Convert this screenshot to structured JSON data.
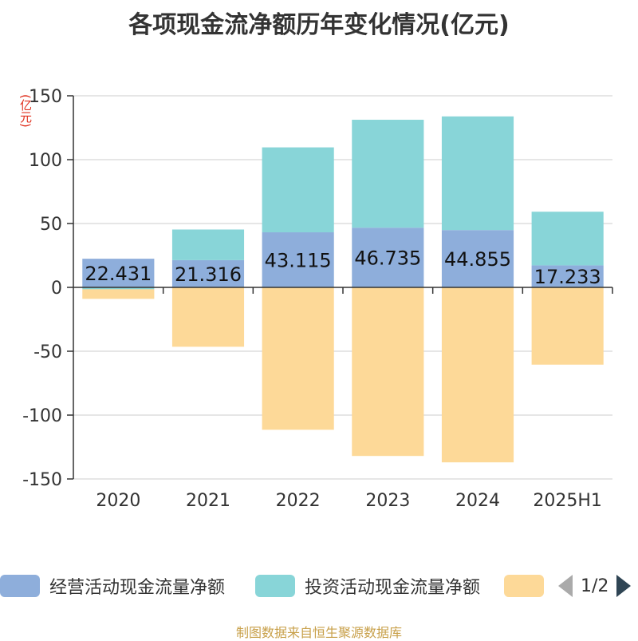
{
  "chart_data": {
    "type": "bar",
    "stacked": true,
    "title": "各项现金流净额历年变化情况(亿元)",
    "ylabel": "(亿元)",
    "categories": [
      "2020",
      "2021",
      "2022",
      "2023",
      "2024",
      "2025H1"
    ],
    "ylim": [
      -150,
      150
    ],
    "yticks": [
      150,
      100,
      50,
      0,
      -50,
      -100,
      -150
    ],
    "grid": true,
    "legend_position": "bottom",
    "series": [
      {
        "name": "经营活动现金流量净额",
        "color": "#8eaedb",
        "values": [
          22.431,
          21.316,
          43.115,
          46.735,
          44.855,
          17.233
        ],
        "labels": [
          "22.431",
          "21.316",
          "43.115",
          "46.735",
          "44.855",
          "17.233"
        ]
      },
      {
        "name": "投资活动现金流量净额",
        "color": "#88d5d8",
        "values": [
          -1.5,
          24.0,
          66.5,
          84.5,
          89.0,
          42.0
        ]
      },
      {
        "name": "",
        "color": "#fdd998",
        "values": [
          -7.5,
          -46.5,
          -111.5,
          -132.0,
          -137.0,
          -60.5
        ]
      }
    ]
  },
  "legend": {
    "items": [
      {
        "label": "经营活动现金流量净额",
        "color": "#8eaedb"
      },
      {
        "label": "投资活动现金流量净额",
        "color": "#88d5d8"
      },
      {
        "label": "",
        "color": "#fdd998"
      }
    ],
    "page": "1/2"
  },
  "source": "制图数据来自恒生聚源数据库"
}
